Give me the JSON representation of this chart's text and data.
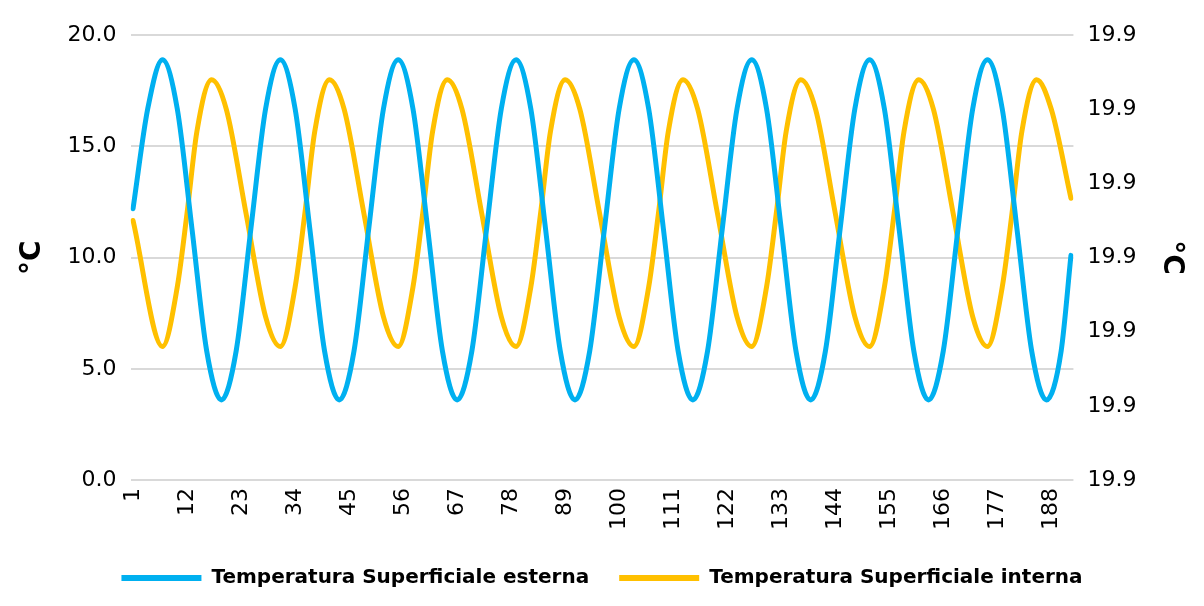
{
  "chart_data": {
    "type": "line",
    "ylabel": "°C",
    "y2label": "°C",
    "xlim": [
      0.5,
      192.5
    ],
    "xticks": [
      1,
      12,
      23,
      34,
      45,
      56,
      67,
      78,
      89,
      100,
      111,
      122,
      133,
      144,
      155,
      166,
      177,
      188
    ],
    "ylim": [
      0,
      20
    ],
    "yticks": [
      {
        "value": 0,
        "label": "0.0"
      },
      {
        "value": 5,
        "label": "5.0"
      },
      {
        "value": 10,
        "label": "10.0"
      },
      {
        "value": 15,
        "label": "15.0"
      },
      {
        "value": 20,
        "label": "20.0"
      }
    ],
    "y2lim": [
      19.88,
      19.94
    ],
    "y2ticks": [
      {
        "value": 19.88,
        "label": "19.9"
      },
      {
        "value": 19.89,
        "label": "19.9"
      },
      {
        "value": 19.9,
        "label": "19.9"
      },
      {
        "value": 19.91,
        "label": "19.9"
      },
      {
        "value": 19.92,
        "label": "19.9"
      },
      {
        "value": 19.93,
        "label": "19.9"
      },
      {
        "value": 19.94,
        "label": "19.9"
      }
    ],
    "grid": "y",
    "legend": "bottom",
    "marker": "none",
    "line_style": "solid",
    "series": [
      {
        "name": "Temperatura Superficiale esterna",
        "color": "#00b0f0",
        "x": [
          1,
          4,
          7,
          10,
          13,
          16,
          19,
          22,
          25,
          28,
          31,
          34,
          37,
          40,
          43,
          46,
          49,
          52,
          55,
          58,
          61,
          64,
          67,
          70,
          73,
          76,
          79,
          82,
          85,
          88,
          91,
          94,
          97,
          100,
          103,
          106,
          109,
          112,
          115,
          118,
          121,
          124,
          127,
          130,
          133,
          136,
          139,
          142,
          145,
          148,
          151,
          154,
          157,
          160,
          163,
          166,
          169,
          172,
          175,
          178,
          181,
          184,
          187,
          190,
          192
        ],
        "values": [
          12.2,
          16.7,
          18.9,
          16.7,
          11.3,
          5.8,
          3.6,
          5.8,
          11.3,
          16.7,
          18.9,
          16.7,
          11.3,
          5.8,
          3.6,
          5.8,
          11.3,
          16.7,
          18.9,
          16.7,
          11.3,
          5.8,
          3.6,
          5.8,
          11.3,
          16.7,
          18.9,
          16.7,
          11.3,
          5.8,
          3.6,
          5.8,
          11.3,
          16.7,
          18.9,
          16.7,
          11.3,
          5.8,
          3.6,
          5.8,
          11.3,
          16.7,
          18.9,
          16.7,
          11.3,
          5.8,
          3.6,
          5.8,
          11.3,
          16.7,
          18.9,
          16.7,
          11.3,
          5.8,
          3.6,
          5.8,
          11.3,
          16.7,
          18.9,
          16.7,
          11.3,
          5.8,
          3.6,
          5.8,
          10.1
        ]
      },
      {
        "name": "Temperatura Superficiale interna",
        "color": "#ffc000",
        "axis": "y2",
        "x": [
          1,
          7,
          10,
          12,
          14,
          17,
          20,
          24,
          28,
          31,
          34,
          36,
          38,
          41,
          44,
          48,
          52,
          55,
          58,
          60,
          62,
          65,
          68,
          72,
          76,
          79,
          82,
          84,
          86,
          89,
          92,
          96,
          100,
          103,
          106,
          108,
          110,
          113,
          116,
          120,
          124,
          127,
          130,
          132,
          134,
          137,
          140,
          144,
          148,
          151,
          154,
          156,
          158,
          161,
          164,
          168,
          172,
          175,
          178,
          180,
          182,
          185,
          188,
          192
        ],
        "values": [
          19.915,
          19.898,
          19.906,
          19.916,
          19.927,
          19.934,
          19.93,
          19.916,
          19.902,
          19.898,
          19.906,
          19.916,
          19.927,
          19.934,
          19.93,
          19.916,
          19.902,
          19.898,
          19.906,
          19.916,
          19.927,
          19.934,
          19.93,
          19.916,
          19.902,
          19.898,
          19.906,
          19.916,
          19.927,
          19.934,
          19.93,
          19.916,
          19.902,
          19.898,
          19.906,
          19.916,
          19.927,
          19.934,
          19.93,
          19.916,
          19.902,
          19.898,
          19.906,
          19.916,
          19.927,
          19.934,
          19.93,
          19.916,
          19.902,
          19.898,
          19.906,
          19.916,
          19.927,
          19.934,
          19.93,
          19.916,
          19.902,
          19.898,
          19.906,
          19.916,
          19.927,
          19.934,
          19.93,
          19.918
        ]
      }
    ]
  }
}
